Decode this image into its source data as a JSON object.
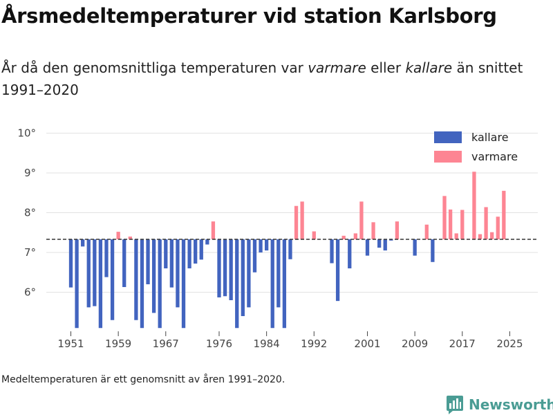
{
  "page": {
    "title": "Årsmedeltemperaturer vid station Karlsborg",
    "subtitle": {
      "before": "År då den genomsnittliga temperaturen var ",
      "warm_word": "varmare",
      "middle": " eller ",
      "cold_word": "kallare",
      "after": " än snittet 1991–2020"
    },
    "note": "Medeltemperaturen är ett genomsnitt av åren 1991–2020.",
    "brand": "Newsworthy"
  },
  "chart_data": {
    "type": "bar",
    "title": "Årsmedeltemperaturer vid station Karlsborg",
    "xlabel": "",
    "ylabel": "",
    "baseline": 7.33,
    "ylim": [
      5.1,
      10.3
    ],
    "y_ticks": [
      6,
      7,
      8,
      9,
      10
    ],
    "y_tick_labels": [
      "6°",
      "7°",
      "8°",
      "9°",
      "10°"
    ],
    "x_ticks": [
      1951,
      1959,
      1967,
      1976,
      1984,
      1992,
      2001,
      2009,
      2017,
      2025
    ],
    "x_tick_labels": [
      "1951",
      "1959",
      "1967",
      "1976",
      "1984",
      "1992",
      "2001",
      "2009",
      "2017",
      "2025"
    ],
    "legend": [
      {
        "name": "kallare",
        "color": "#4264bf"
      },
      {
        "name": "varmare",
        "color": "#fd8593"
      }
    ],
    "legend_position": "top-right",
    "colors": {
      "cold": "#4264bf",
      "warm": "#fd8593",
      "baseline": "#333333",
      "grid": "#e2e2e2"
    },
    "x": [
      1951,
      1952,
      1953,
      1954,
      1955,
      1956,
      1957,
      1958,
      1959,
      1960,
      1961,
      1962,
      1963,
      1964,
      1965,
      1966,
      1967,
      1968,
      1969,
      1970,
      1971,
      1972,
      1973,
      1974,
      1975,
      1976,
      1977,
      1978,
      1979,
      1980,
      1981,
      1982,
      1983,
      1984,
      1985,
      1986,
      1987,
      1988,
      1989,
      1990,
      1991,
      1992,
      1993,
      1994,
      1995,
      1996,
      1997,
      1998,
      1999,
      2000,
      2001,
      2002,
      2003,
      2004,
      2005,
      2006,
      2007,
      2008,
      2009,
      2010,
      2011,
      2012,
      2013,
      2014,
      2015,
      2016,
      2017,
      2018,
      2019,
      2020,
      2021,
      2022,
      2023,
      2024,
      2025
    ],
    "values": [
      6.12,
      5.1,
      7.15,
      5.62,
      5.65,
      5.1,
      6.38,
      5.3,
      7.52,
      6.13,
      7.4,
      5.3,
      5.1,
      6.2,
      5.48,
      5.1,
      6.6,
      6.12,
      5.62,
      5.1,
      6.6,
      6.72,
      6.82,
      7.2,
      7.78,
      5.87,
      5.9,
      5.8,
      5.1,
      5.4,
      5.62,
      6.5,
      7.0,
      7.05,
      5.1,
      5.62,
      5.1,
      6.83,
      8.17,
      8.28,
      7.33,
      7.53,
      7.33,
      7.33,
      6.73,
      5.78,
      7.42,
      6.6,
      7.48,
      8.28,
      6.92,
      7.76,
      7.12,
      7.05,
      7.3,
      7.78,
      7.33,
      7.33,
      6.92,
      7.33,
      7.7,
      6.76,
      7.33,
      8.42,
      8.08,
      7.48,
      8.07,
      7.33,
      9.03,
      7.46,
      8.14,
      7.51,
      7.9,
      8.55,
      7.33
    ]
  }
}
